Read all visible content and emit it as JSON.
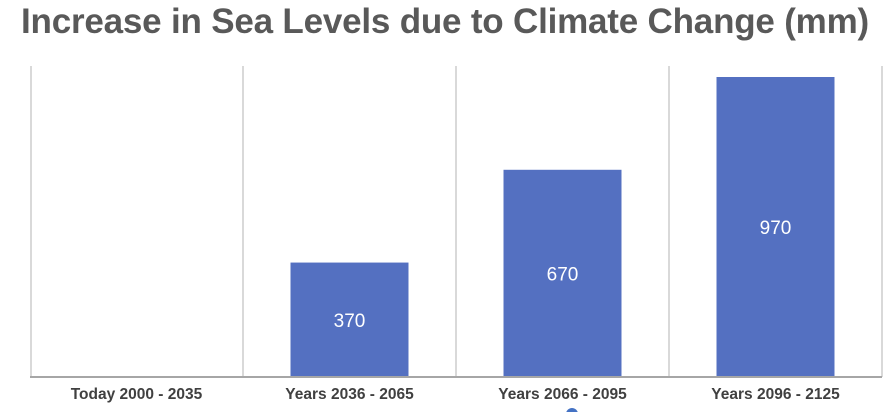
{
  "chart_data": {
    "type": "bar",
    "title": "Increase in Sea Levels due to Climate Change (mm)",
    "xlabel": "",
    "ylabel": "",
    "categories": [
      "Today 2000 - 2035",
      "Years 2036 - 2065",
      "Years 2066 - 2095",
      "Years 2096 - 2125"
    ],
    "values": [
      0,
      370,
      670,
      970
    ],
    "data_labels": [
      "",
      "370",
      "670",
      "970"
    ],
    "ylim": [
      0,
      970
    ],
    "grid": "vertical",
    "legend": "none",
    "colors": {
      "bar": "#5470C1",
      "grid": "#D9D9D9",
      "axis": "#A6A6A6",
      "title": "#595959",
      "tick": "#404040",
      "data_label": "#FFFFFF",
      "marker": "#4472C4"
    }
  }
}
